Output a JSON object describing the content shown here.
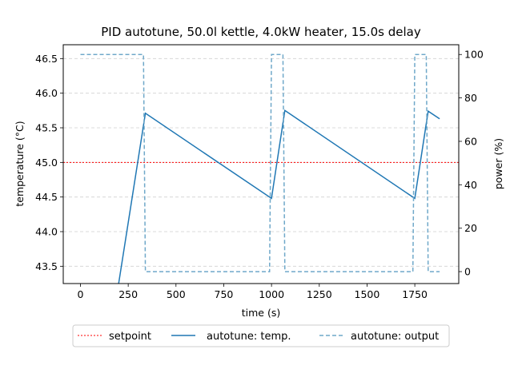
{
  "chart_data": {
    "type": "line",
    "title": "PID autotune, 50.0l kettle, 4.0kW heater, 15.0s delay",
    "xlabel": "time (s)",
    "ylabel": "temperature (°C)",
    "y2label": "power (%)",
    "xlim": [
      -90,
      1980
    ],
    "ylim": [
      43.25,
      46.7
    ],
    "y2lim": [
      -5.5,
      104.5
    ],
    "xticks": [
      0,
      250,
      500,
      750,
      1000,
      1250,
      1500,
      1750
    ],
    "yticks": [
      43.5,
      44.0,
      44.5,
      45.0,
      45.5,
      46.0,
      46.5
    ],
    "y2ticks": [
      0,
      20,
      40,
      60,
      80,
      100
    ],
    "grid": "horizontal dashed",
    "legend_position": "below plot",
    "setpoint": {
      "name": "setpoint",
      "value": 45.0,
      "color": "#ff0000",
      "style": "dotted"
    },
    "series": [
      {
        "name": "autotune: temp.",
        "axis": "left",
        "color": "#1f77b4",
        "style": "solid",
        "x": [
          200,
          340,
          1000,
          1070,
          1750,
          1820,
          1880
        ],
        "y": [
          43.25,
          45.71,
          44.48,
          45.75,
          44.48,
          45.74,
          45.63
        ]
      },
      {
        "name": "autotune: output",
        "axis": "right",
        "color": "#6fa8c9",
        "style": "dashed",
        "x": [
          0,
          330,
          340,
          990,
          1000,
          1060,
          1070,
          1740,
          1750,
          1810,
          1820,
          1880
        ],
        "y": [
          100,
          100,
          0,
          0,
          100,
          100,
          0,
          0,
          100,
          100,
          0,
          0
        ]
      }
    ]
  }
}
